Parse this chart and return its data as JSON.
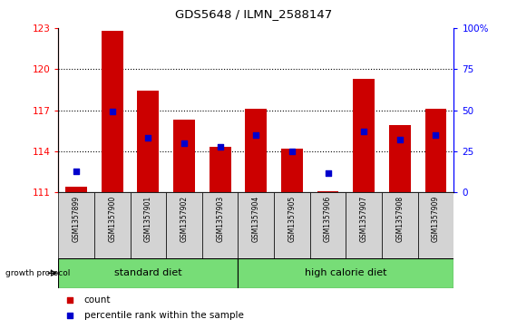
{
  "title": "GDS5648 / ILMN_2588147",
  "samples": [
    "GSM1357899",
    "GSM1357900",
    "GSM1357901",
    "GSM1357902",
    "GSM1357903",
    "GSM1357904",
    "GSM1357905",
    "GSM1357906",
    "GSM1357907",
    "GSM1357908",
    "GSM1357909"
  ],
  "count_values": [
    111.4,
    122.8,
    118.4,
    116.3,
    114.3,
    117.1,
    114.2,
    111.1,
    119.3,
    115.9,
    117.1
  ],
  "percentile_values": [
    13,
    49,
    33,
    30,
    28,
    35,
    25,
    12,
    37,
    32,
    35
  ],
  "ylim_left": [
    111,
    123
  ],
  "ylim_right": [
    0,
    100
  ],
  "yticks_left": [
    111,
    114,
    117,
    120,
    123
  ],
  "yticks_right": [
    0,
    25,
    50,
    75,
    100
  ],
  "ytick_labels_right": [
    "0",
    "25",
    "50",
    "75",
    "100%"
  ],
  "bar_color": "#cc0000",
  "dot_color": "#0000cc",
  "bar_width": 0.6,
  "bar_bottom": 111,
  "standard_diet_indices": [
    0,
    1,
    2,
    3,
    4
  ],
  "high_calorie_indices": [
    5,
    6,
    7,
    8,
    9,
    10
  ],
  "group_labels": [
    "standard diet",
    "high calorie diet"
  ],
  "growth_protocol_label": "growth protocol",
  "legend_items": [
    [
      "count",
      "#cc0000"
    ],
    [
      "percentile rank within the sample",
      "#0000cc"
    ]
  ],
  "tick_bg_color": "#d3d3d3",
  "group_bg_color": "#77dd77"
}
